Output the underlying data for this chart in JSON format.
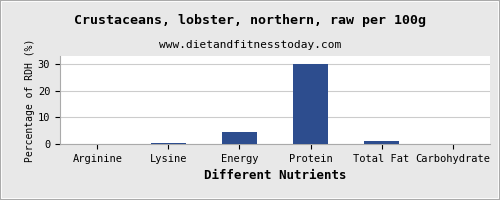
{
  "title": "Crustaceans, lobster, northern, raw per 100g",
  "subtitle": "www.dietandfitnesstoday.com",
  "xlabel": "Different Nutrients",
  "ylabel": "Percentage of RDH (%)",
  "categories": [
    "Arginine",
    "Lysine",
    "Energy",
    "Protein",
    "Total Fat",
    "Carbohydrate"
  ],
  "values": [
    0.0,
    0.3,
    4.5,
    30.0,
    1.0,
    0.1
  ],
  "bar_color": "#2d4d8e",
  "ylim": [
    0,
    33
  ],
  "yticks": [
    0,
    10,
    20,
    30
  ],
  "background_color": "#e8e8e8",
  "plot_bg_color": "#ffffff",
  "title_fontsize": 9.5,
  "subtitle_fontsize": 8,
  "xlabel_fontsize": 9,
  "ylabel_fontsize": 7,
  "tick_fontsize": 7.5,
  "grid_color": "#cccccc",
  "border_color": "#aaaaaa"
}
